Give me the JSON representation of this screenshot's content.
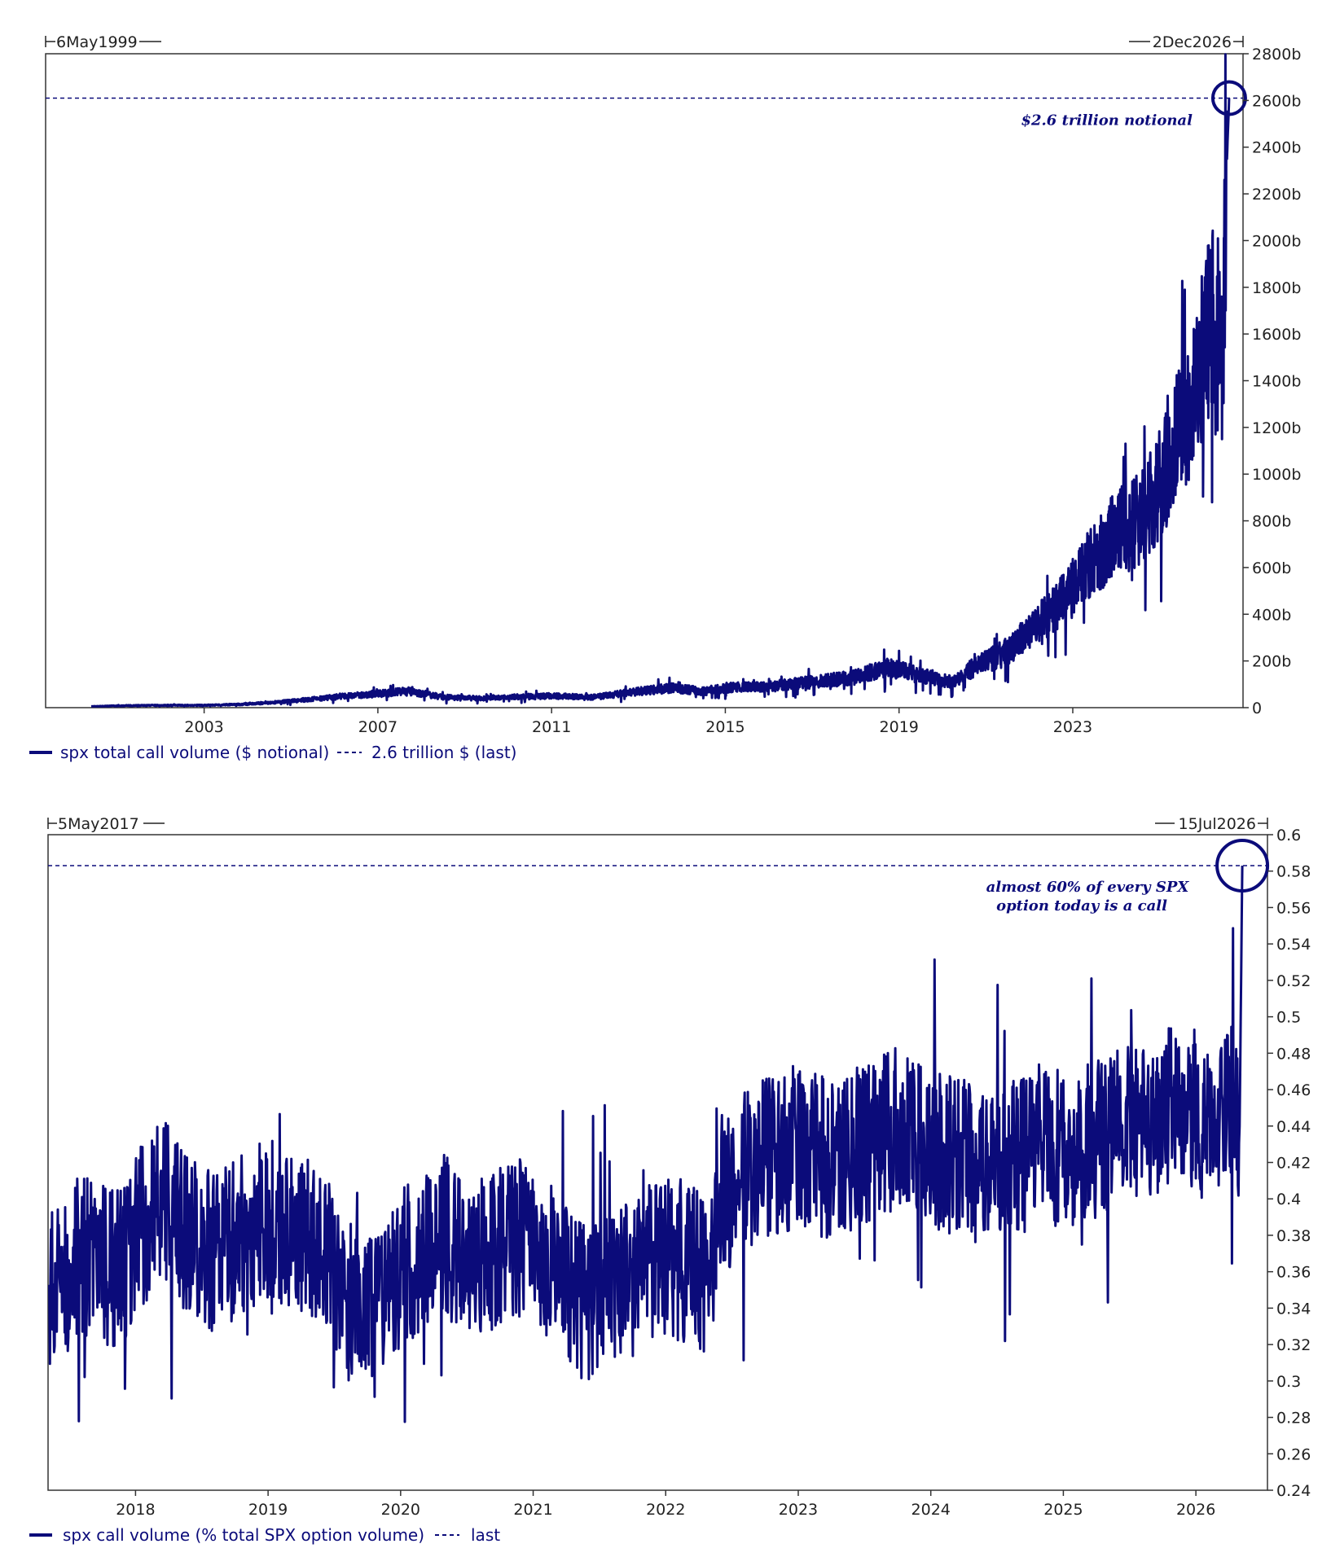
{
  "theme": {
    "series_color": "#0b0b7a",
    "frame_color": "#333333",
    "text_color": "#222222"
  },
  "chart_data": [
    {
      "type": "line",
      "range_start": "6May1999",
      "range_end": "2Dec2026",
      "xlim": [
        1999.35,
        2026.92
      ],
      "ylim": [
        0,
        2800
      ],
      "x_ticks": [
        "2003",
        "2007",
        "2011",
        "2015",
        "2019",
        "2023"
      ],
      "y_ticks": [
        "0",
        "200b",
        "400b",
        "600b",
        "800b",
        "1000b",
        "1200b",
        "1400b",
        "1600b",
        "1800b",
        "2000b",
        "2200b",
        "2400b",
        "2600b",
        "2800b"
      ],
      "y_tick_values": [
        0,
        200,
        400,
        600,
        800,
        1000,
        1200,
        1400,
        1600,
        1800,
        2000,
        2200,
        2400,
        2600,
        2800
      ],
      "last_value": 2610,
      "annotation": "$2.6 trillion notional",
      "series": [
        {
          "name": "spx total call volume ($ notional)",
          "x": [
            2000.4,
            2001.0,
            2002.0,
            2003.0,
            2004.0,
            2005.0,
            2006.0,
            2007.0,
            2007.7,
            2008.5,
            2009.3,
            2010.0,
            2011.0,
            2012.0,
            2013.0,
            2013.8,
            2014.5,
            2015.0,
            2016.0,
            2017.0,
            2018.0,
            2018.7,
            2019.5,
            2020.2,
            2020.8,
            2021.5,
            2022.0,
            2022.6,
            2023.0,
            2023.5,
            2024.0,
            2024.5,
            2025.0,
            2025.3,
            2025.6,
            2025.8,
            2026.0,
            2026.2,
            2026.3,
            2026.35,
            2026.4,
            2026.45,
            2026.5,
            2026.55,
            2026.6
          ],
          "y": [
            5,
            8,
            10,
            10,
            15,
            28,
            45,
            60,
            70,
            45,
            40,
            45,
            50,
            45,
            70,
            85,
            70,
            85,
            90,
            110,
            130,
            170,
            140,
            110,
            180,
            240,
            330,
            420,
            520,
            640,
            750,
            800,
            950,
            1100,
            1250,
            1350,
            1500,
            1700,
            1400,
            1650,
            1600,
            1500,
            2000,
            2350,
            2610
          ]
        },
        {
          "name": "2.6 trillion $ (last)"
        }
      ]
    },
    {
      "type": "line",
      "range_start": "5May2017",
      "range_end": "15Jul2026",
      "xlim": [
        2017.34,
        2026.54
      ],
      "ylim": [
        0.24,
        0.6
      ],
      "x_ticks": [
        "2018",
        "2019",
        "2020",
        "2021",
        "2022",
        "2023",
        "2024",
        "2025",
        "2026"
      ],
      "y_ticks": [
        "0.24",
        "0.26",
        "0.28",
        "0.3",
        "0.32",
        "0.34",
        "0.36",
        "0.38",
        "0.4",
        "0.42",
        "0.44",
        "0.46",
        "0.48",
        "0.5",
        "0.52",
        "0.54",
        "0.56",
        "0.58",
        "0.6"
      ],
      "y_tick_values": [
        0.24,
        0.26,
        0.28,
        0.3,
        0.32,
        0.34,
        0.36,
        0.38,
        0.4,
        0.42,
        0.44,
        0.46,
        0.48,
        0.5,
        0.52,
        0.54,
        0.56,
        0.58,
        0.6
      ],
      "last_value": 0.583,
      "annotation_lines": [
        "almost 60% of every SPX",
        "option today is a call"
      ],
      "series": [
        {
          "name": "spx call volume (% total SPX option volume)",
          "x": [
            2017.35,
            2017.6,
            2017.9,
            2018.0,
            2018.2,
            2018.4,
            2018.6,
            2018.8,
            2019.0,
            2019.3,
            2019.5,
            2019.7,
            2019.9,
            2020.0,
            2020.3,
            2020.6,
            2020.9,
            2021.2,
            2021.4,
            2021.6,
            2021.8,
            2022.0,
            2022.3,
            2022.5,
            2022.7,
            2023.0,
            2023.3,
            2023.5,
            2023.8,
            2024.0,
            2024.3,
            2024.5,
            2024.6,
            2024.8,
            2025.0,
            2025.2,
            2025.4,
            2025.6,
            2025.8,
            2026.0,
            2026.2,
            2026.3,
            2026.33,
            2026.35
          ],
          "y": [
            0.35,
            0.37,
            0.36,
            0.38,
            0.4,
            0.38,
            0.37,
            0.38,
            0.39,
            0.38,
            0.36,
            0.33,
            0.34,
            0.36,
            0.38,
            0.37,
            0.38,
            0.36,
            0.34,
            0.35,
            0.36,
            0.37,
            0.36,
            0.41,
            0.42,
            0.43,
            0.42,
            0.43,
            0.44,
            0.43,
            0.42,
            0.42,
            0.42,
            0.43,
            0.43,
            0.43,
            0.44,
            0.44,
            0.45,
            0.45,
            0.45,
            0.46,
            0.44,
            0.583
          ]
        },
        {
          "name": "last"
        }
      ]
    }
  ]
}
